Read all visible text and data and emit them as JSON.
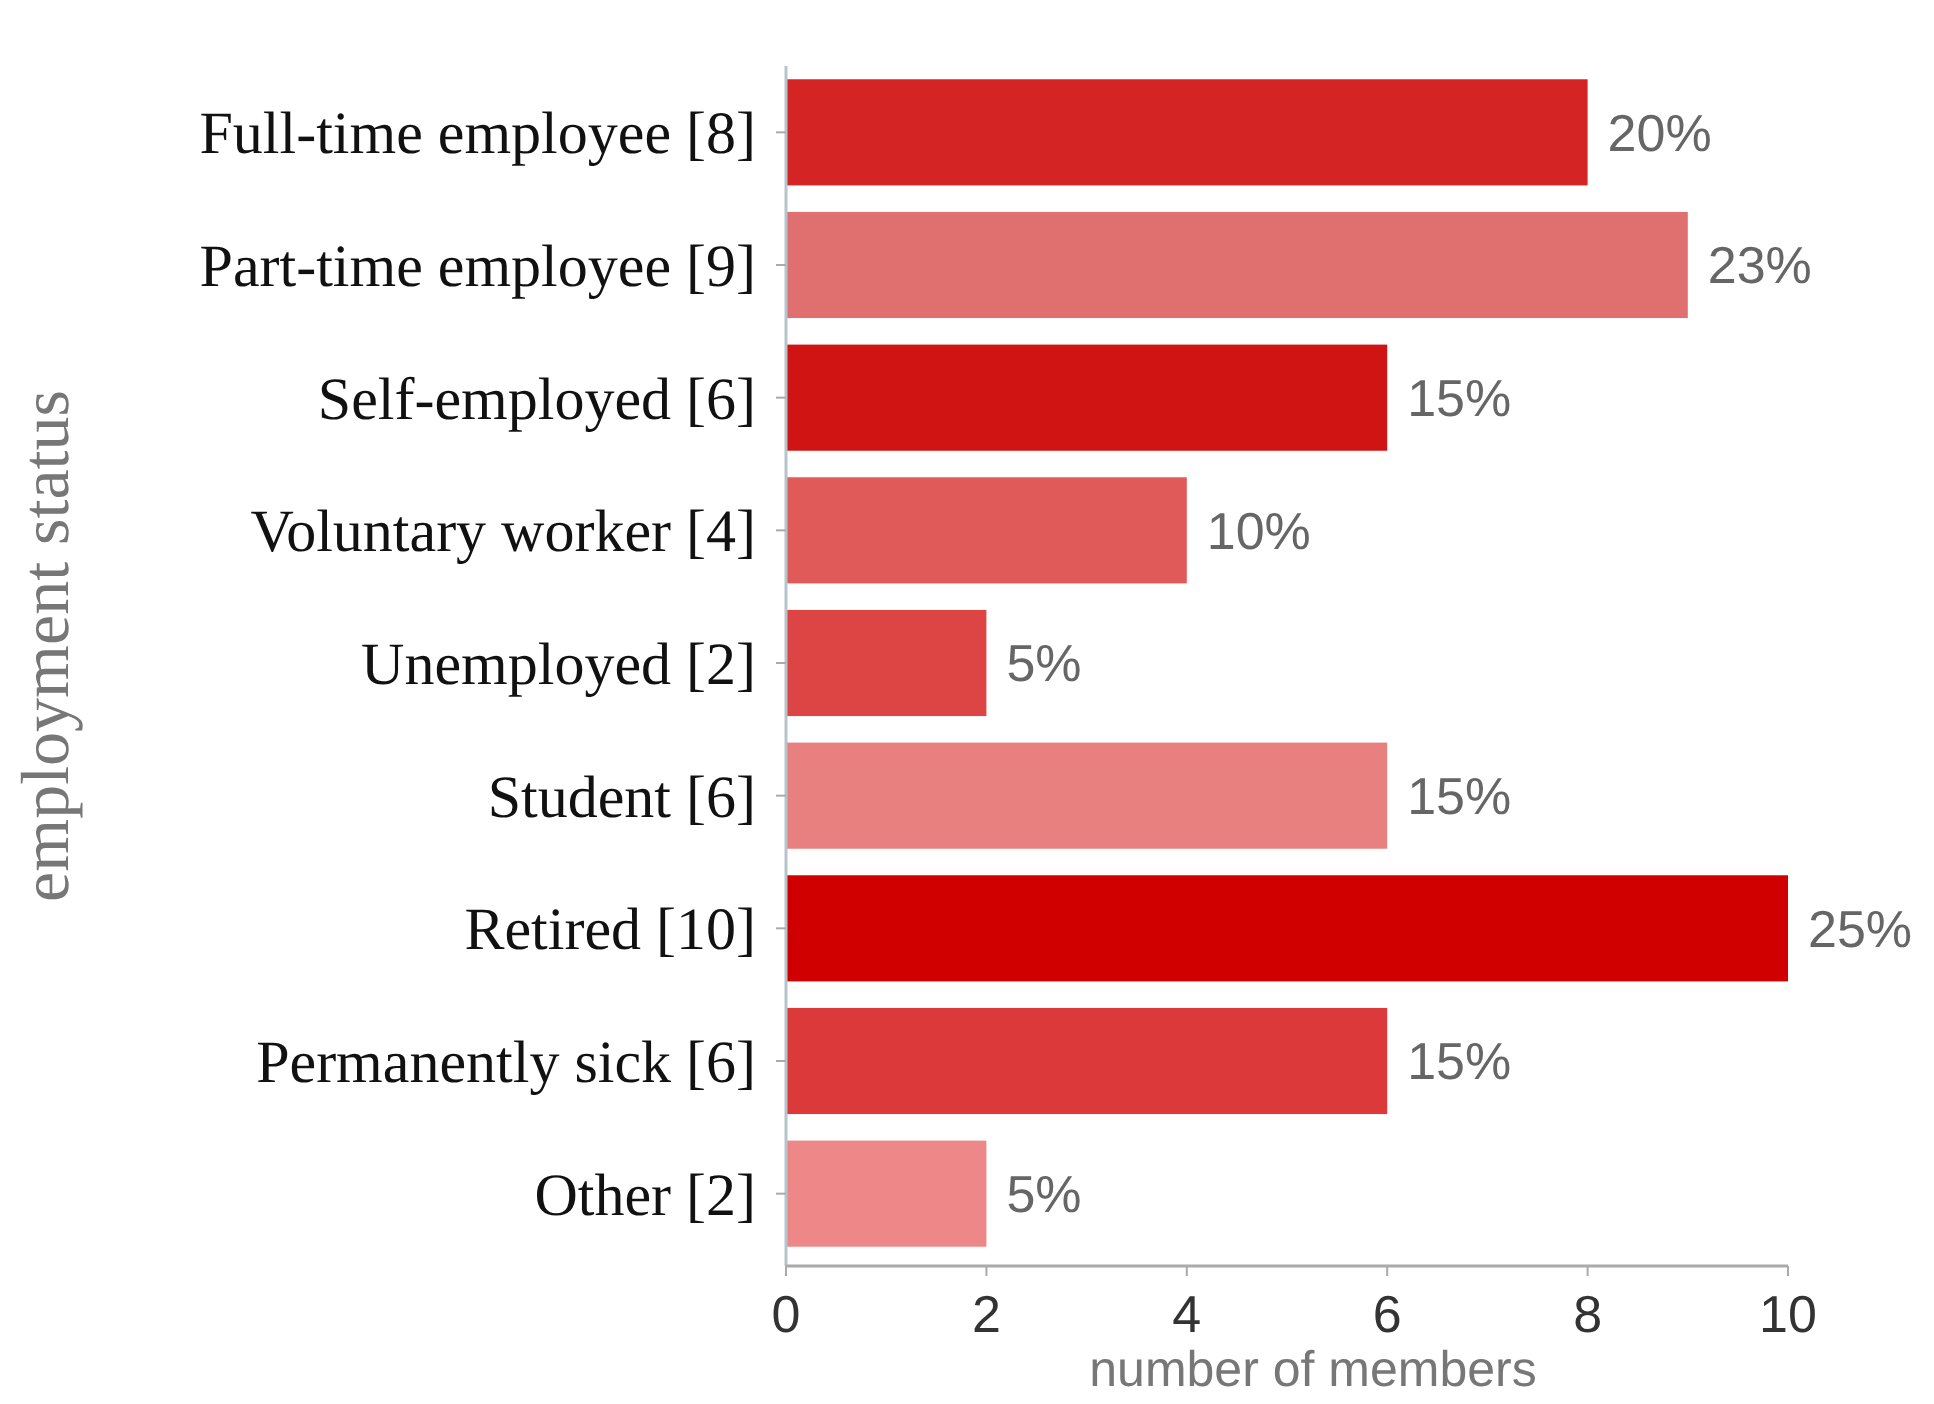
{
  "chart_data": {
    "type": "bar",
    "orientation": "horizontal",
    "categories": [
      "Full-time employee [8]",
      "Part-time employee [9]",
      "Self-employed [6]",
      "Voluntary worker [4]",
      "Unemployed [2]",
      "Student [6]",
      "Retired [10]",
      "Permanently sick [6]",
      "Other [2]"
    ],
    "values": [
      8,
      9,
      6,
      4,
      2,
      6,
      10,
      6,
      2
    ],
    "colors": [
      "#d42424",
      "#e07070",
      "#d01414",
      "#e05a5a",
      "#dd4444",
      "#e88080",
      "#d00000",
      "#dc3a3a",
      "#ee8888"
    ],
    "annotations": [
      {
        "text": "20%",
        "x": 8,
        "y": "Full-time employee [8]"
      },
      {
        "text": "23%",
        "x": 9,
        "y": "Part-time employee [9]"
      },
      {
        "text": "15%",
        "x": 6,
        "y": "Self-employed [6]"
      },
      {
        "text": "10%",
        "x": 4,
        "y": "Voluntary worker [4]"
      },
      {
        "text": "5%",
        "x": 2,
        "y": "Unemployed [2]"
      },
      {
        "text": "15%",
        "x": 6,
        "y": "Student [6]"
      },
      {
        "text": "25%",
        "x": 10,
        "y": "Retired [10]"
      },
      {
        "text": "15%",
        "x": 6,
        "y": "Permanently sick [6]"
      },
      {
        "text": "5%",
        "x": 2,
        "y": "Other [2]"
      }
    ],
    "xlim": [
      0,
      10
    ],
    "xticks": [
      0,
      2,
      4,
      6,
      8,
      10
    ],
    "xlabel": "number of members",
    "ylabel": "employment status",
    "grid": false
  }
}
